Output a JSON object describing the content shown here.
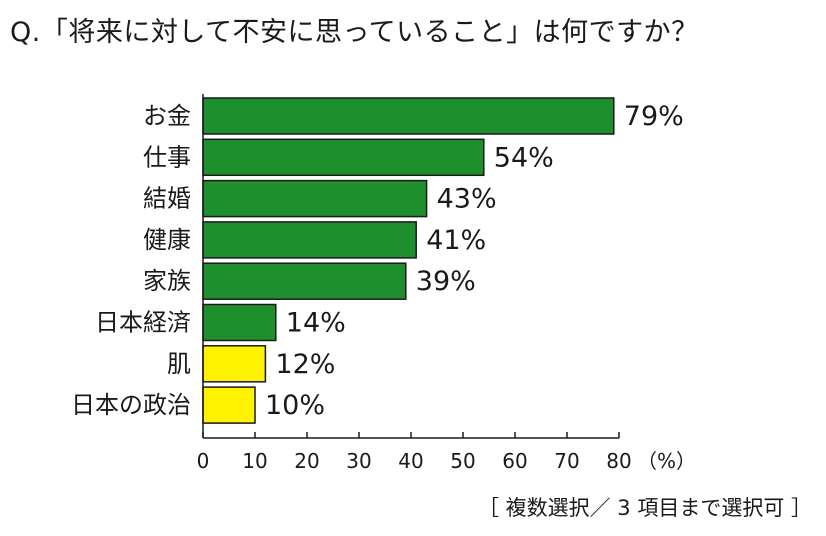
{
  "title": "Q.「将来に対して不安に思っていること」は何ですか？",
  "note": "［ 複数選択／ 3 項目まで選択可 ］",
  "colors": {
    "bar_green": "#1e8f2d",
    "bar_yellow": "#fff200",
    "bar_border": "#1a1a1a",
    "axis": "#1a1a1a"
  },
  "chart_data": {
    "type": "bar",
    "orientation": "horizontal",
    "categories": [
      "お金",
      "仕事",
      "結婚",
      "健康",
      "家族",
      "日本経済",
      "肌",
      "日本の政治"
    ],
    "values": [
      79,
      54,
      43,
      41,
      39,
      14,
      12,
      10
    ],
    "value_labels": [
      "79%",
      "54%",
      "43%",
      "41%",
      "39%",
      "14%",
      "12%",
      "10%"
    ],
    "bar_colors": [
      "green",
      "green",
      "green",
      "green",
      "green",
      "green",
      "yellow",
      "yellow"
    ],
    "xlim": [
      0,
      80
    ],
    "xticks": [
      0,
      10,
      20,
      30,
      40,
      50,
      60,
      70,
      80
    ],
    "xunit": "（%）",
    "grid": false,
    "legend": "none"
  }
}
